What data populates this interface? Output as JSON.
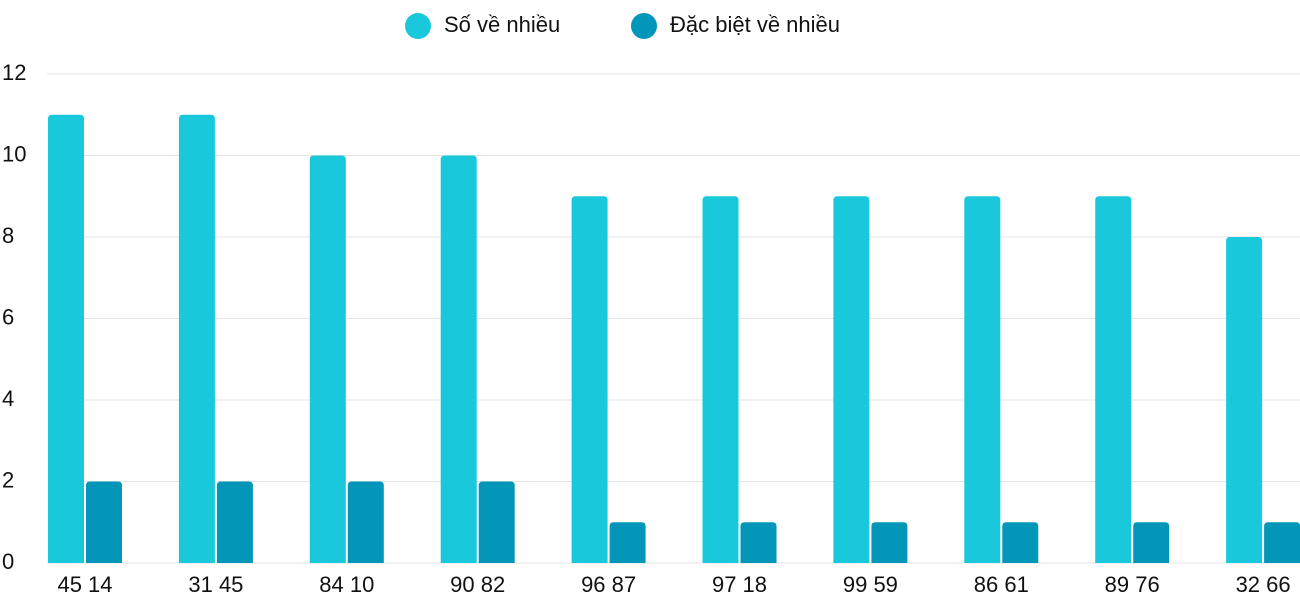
{
  "chart_data": {
    "type": "bar",
    "categories": [
      "45 14",
      "31 45",
      "84 10",
      "90 82",
      "96 87",
      "97 18",
      "99 59",
      "86 61",
      "89 76",
      "32 66"
    ],
    "series": [
      {
        "name": "Số về nhiều",
        "color": "#1ac8db",
        "values": [
          11,
          11,
          10,
          10,
          9,
          9,
          9,
          9,
          9,
          8
        ]
      },
      {
        "name": "Đặc biệt về nhiều",
        "color": "#0396b8",
        "values": [
          2,
          2,
          2,
          2,
          1,
          1,
          1,
          1,
          1,
          1
        ]
      }
    ],
    "ylim": [
      0,
      12
    ],
    "yticks": [
      0,
      2,
      4,
      6,
      8,
      10,
      12
    ],
    "grid": true,
    "legend": "top"
  }
}
